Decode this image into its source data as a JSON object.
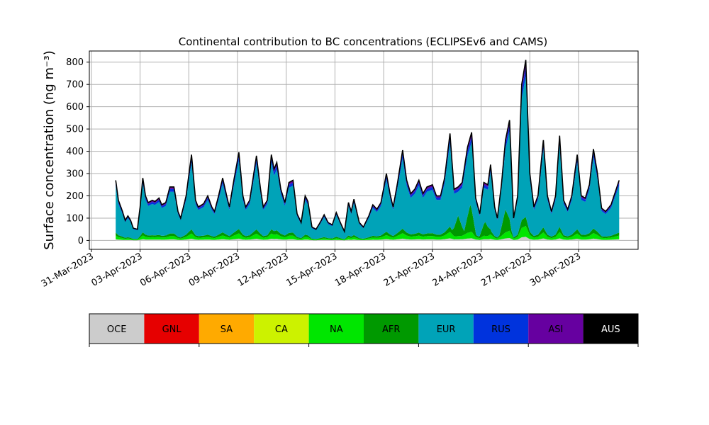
{
  "chart_data": {
    "type": "area",
    "title": "Continental contribution to BC concentrations (ECLIPSEv6 and CAMS)",
    "ylabel": "Surface concentration (ng m⁻³)",
    "xlabel": "",
    "ylim": [
      -40,
      850
    ],
    "xlim": [
      "2023-03-30T21:00",
      "2023-05-03T16:00"
    ],
    "x_range": [
      "2023-04-01T12:00",
      "2023-05-02T12:00"
    ],
    "grid": true,
    "y_ticks": [
      0,
      100,
      200,
      300,
      400,
      500,
      600,
      700,
      800
    ],
    "x_ticks": [
      "31-Mar-2023",
      "03-Apr-2023",
      "06-Apr-2023",
      "09-Apr-2023",
      "12-Apr-2023",
      "15-Apr-2023",
      "18-Apr-2023",
      "21-Apr-2023",
      "24-Apr-2023",
      "27-Apr-2023",
      "30-Apr-2023"
    ],
    "x_tick_dates": [
      "2023-03-31",
      "2023-04-03",
      "2023-04-06",
      "2023-04-09",
      "2023-04-12",
      "2023-04-15",
      "2023-04-18",
      "2023-04-21",
      "2023-04-24",
      "2023-04-27",
      "2023-04-30"
    ],
    "total_keypoints": [
      [
        "2023-04-01T12:00",
        270
      ],
      [
        "2023-04-01T16:00",
        180
      ],
      [
        "2023-04-01T22:00",
        130
      ],
      [
        "2023-04-02T02:00",
        90
      ],
      [
        "2023-04-02T06:00",
        110
      ],
      [
        "2023-04-02T10:00",
        90
      ],
      [
        "2023-04-02T14:00",
        55
      ],
      [
        "2023-04-02T20:00",
        50
      ],
      [
        "2023-04-03T00:00",
        150
      ],
      [
        "2023-04-03T04:00",
        280
      ],
      [
        "2023-04-03T08:00",
        200
      ],
      [
        "2023-04-03T12:00",
        170
      ],
      [
        "2023-04-03T18:00",
        180
      ],
      [
        "2023-04-03T22:00",
        175
      ],
      [
        "2023-04-04T04:00",
        190
      ],
      [
        "2023-04-04T08:00",
        160
      ],
      [
        "2023-04-04T14:00",
        170
      ],
      [
        "2023-04-04T20:00",
        240
      ],
      [
        "2023-04-05T02:00",
        240
      ],
      [
        "2023-04-05T08:00",
        130
      ],
      [
        "2023-04-05T12:00",
        100
      ],
      [
        "2023-04-05T20:00",
        200
      ],
      [
        "2023-04-06T04:00",
        385
      ],
      [
        "2023-04-06T10:00",
        180
      ],
      [
        "2023-04-06T14:00",
        150
      ],
      [
        "2023-04-06T22:00",
        165
      ],
      [
        "2023-04-07T04:00",
        200
      ],
      [
        "2023-04-07T10:00",
        150
      ],
      [
        "2023-04-07T14:00",
        130
      ],
      [
        "2023-04-07T20:00",
        200
      ],
      [
        "2023-04-08T02:00",
        280
      ],
      [
        "2023-04-08T08:00",
        200
      ],
      [
        "2023-04-08T12:00",
        150
      ],
      [
        "2023-04-08T18:00",
        260
      ],
      [
        "2023-04-09T02:00",
        395
      ],
      [
        "2023-04-09T08:00",
        200
      ],
      [
        "2023-04-09T12:00",
        150
      ],
      [
        "2023-04-09T18:00",
        180
      ],
      [
        "2023-04-10T04:00",
        380
      ],
      [
        "2023-04-10T10:00",
        230
      ],
      [
        "2023-04-10T14:00",
        150
      ],
      [
        "2023-04-10T20:00",
        180
      ],
      [
        "2023-04-11T02:00",
        385
      ],
      [
        "2023-04-11T06:00",
        320
      ],
      [
        "2023-04-11T10:00",
        350
      ],
      [
        "2023-04-11T16:00",
        230
      ],
      [
        "2023-04-11T22:00",
        170
      ],
      [
        "2023-04-12T04:00",
        260
      ],
      [
        "2023-04-12T10:00",
        270
      ],
      [
        "2023-04-12T16:00",
        120
      ],
      [
        "2023-04-12T22:00",
        80
      ],
      [
        "2023-04-13T04:00",
        200
      ],
      [
        "2023-04-13T08:00",
        175
      ],
      [
        "2023-04-13T14:00",
        60
      ],
      [
        "2023-04-13T20:00",
        50
      ],
      [
        "2023-04-14T02:00",
        80
      ],
      [
        "2023-04-14T08:00",
        115
      ],
      [
        "2023-04-14T14:00",
        80
      ],
      [
        "2023-04-14T20:00",
        70
      ],
      [
        "2023-04-15T02:00",
        125
      ],
      [
        "2023-04-15T08:00",
        80
      ],
      [
        "2023-04-15T14:00",
        40
      ],
      [
        "2023-04-15T20:00",
        170
      ],
      [
        "2023-04-16T00:00",
        130
      ],
      [
        "2023-04-16T04:00",
        185
      ],
      [
        "2023-04-16T12:00",
        80
      ],
      [
        "2023-04-16T18:00",
        60
      ],
      [
        "2023-04-17T02:00",
        110
      ],
      [
        "2023-04-17T08:00",
        160
      ],
      [
        "2023-04-17T14:00",
        140
      ],
      [
        "2023-04-17T20:00",
        170
      ],
      [
        "2023-04-18T04:00",
        300
      ],
      [
        "2023-04-18T10:00",
        200
      ],
      [
        "2023-04-18T14:00",
        150
      ],
      [
        "2023-04-18T20:00",
        250
      ],
      [
        "2023-04-19T04:00",
        405
      ],
      [
        "2023-04-19T10:00",
        270
      ],
      [
        "2023-04-19T16:00",
        210
      ],
      [
        "2023-04-19T22:00",
        230
      ],
      [
        "2023-04-20T04:00",
        270
      ],
      [
        "2023-04-20T10:00",
        210
      ],
      [
        "2023-04-20T16:00",
        240
      ],
      [
        "2023-04-21T00:00",
        250
      ],
      [
        "2023-04-21T06:00",
        200
      ],
      [
        "2023-04-21T12:00",
        200
      ],
      [
        "2023-04-21T18:00",
        280
      ],
      [
        "2023-04-22T02:00",
        480
      ],
      [
        "2023-04-22T08:00",
        230
      ],
      [
        "2023-04-22T14:00",
        240
      ],
      [
        "2023-04-22T20:00",
        260
      ],
      [
        "2023-04-23T04:00",
        420
      ],
      [
        "2023-04-23T10:00",
        485
      ],
      [
        "2023-04-23T16:00",
        190
      ],
      [
        "2023-04-23T22:00",
        120
      ],
      [
        "2023-04-24T04:00",
        260
      ],
      [
        "2023-04-24T10:00",
        250
      ],
      [
        "2023-04-24T14:00",
        340
      ],
      [
        "2023-04-24T20:00",
        150
      ],
      [
        "2023-04-25T00:00",
        100
      ],
      [
        "2023-04-25T06:00",
        250
      ],
      [
        "2023-04-25T12:00",
        450
      ],
      [
        "2023-04-25T18:00",
        540
      ],
      [
        "2023-04-26T00:00",
        100
      ],
      [
        "2023-04-26T06:00",
        200
      ],
      [
        "2023-04-26T12:00",
        700
      ],
      [
        "2023-04-26T18:00",
        810
      ],
      [
        "2023-04-27T00:00",
        300
      ],
      [
        "2023-04-27T06:00",
        150
      ],
      [
        "2023-04-27T12:00",
        200
      ],
      [
        "2023-04-27T20:00",
        450
      ],
      [
        "2023-04-28T02:00",
        200
      ],
      [
        "2023-04-28T08:00",
        130
      ],
      [
        "2023-04-28T14:00",
        200
      ],
      [
        "2023-04-28T20:00",
        470
      ],
      [
        "2023-04-29T02:00",
        180
      ],
      [
        "2023-04-29T08:00",
        140
      ],
      [
        "2023-04-29T14:00",
        200
      ],
      [
        "2023-04-29T22:00",
        385
      ],
      [
        "2023-04-30T04:00",
        200
      ],
      [
        "2023-04-30T10:00",
        190
      ],
      [
        "2023-04-30T16:00",
        250
      ],
      [
        "2023-04-30T22:00",
        410
      ],
      [
        "2023-05-01T04:00",
        300
      ],
      [
        "2023-05-01T10:00",
        145
      ],
      [
        "2023-05-01T16:00",
        130
      ],
      [
        "2023-05-02T00:00",
        160
      ],
      [
        "2023-05-02T12:00",
        270
      ]
    ],
    "series": [
      {
        "name": "OCE",
        "color": "#cccccc",
        "fraction_of_total": 0.02
      },
      {
        "name": "GNL",
        "color": "#e60000",
        "fraction_of_total": 0.0
      },
      {
        "name": "SA",
        "color": "#ffaa00",
        "fraction_of_total": 0.0
      },
      {
        "name": "CA",
        "color": "#ccf200",
        "fraction_of_total": 0.0
      },
      {
        "name": "NA",
        "color": "#00e600",
        "fraction_of_total": 0.06
      },
      {
        "name": "AFR",
        "color": "#009900",
        "fraction_of_total": 0.05
      },
      {
        "name": "EUR",
        "color": "#00a3b8",
        "fraction_of_total": 0.78
      },
      {
        "name": "RUS",
        "color": "#0033dd",
        "fraction_of_total": 0.05
      },
      {
        "name": "ASI",
        "color": "#6600a0",
        "fraction_of_total": 0.03
      },
      {
        "name": "AUS",
        "color": "#000000",
        "fraction_of_total": 0.01
      }
    ],
    "afr_peaks": [
      [
        "2023-04-22T14:00",
        80
      ],
      [
        "2023-04-23T08:00",
        100
      ],
      [
        "2023-04-24T06:00",
        50
      ],
      [
        "2023-04-25T12:00",
        80
      ]
    ]
  },
  "legend": {
    "items": [
      {
        "label": "OCE",
        "color": "#cccccc",
        "text_color": "#000000"
      },
      {
        "label": "GNL",
        "color": "#e60000",
        "text_color": "#000000"
      },
      {
        "label": "SA",
        "color": "#ffaa00",
        "text_color": "#000000"
      },
      {
        "label": "CA",
        "color": "#ccf200",
        "text_color": "#000000"
      },
      {
        "label": "NA",
        "color": "#00e600",
        "text_color": "#000000"
      },
      {
        "label": "AFR",
        "color": "#009900",
        "text_color": "#000000"
      },
      {
        "label": "EUR",
        "color": "#00a3b8",
        "text_color": "#000000"
      },
      {
        "label": "RUS",
        "color": "#0033dd",
        "text_color": "#000000"
      },
      {
        "label": "ASI",
        "color": "#6600a0",
        "text_color": "#000000"
      },
      {
        "label": "AUS",
        "color": "#000000",
        "text_color": "#ffffff"
      }
    ]
  }
}
